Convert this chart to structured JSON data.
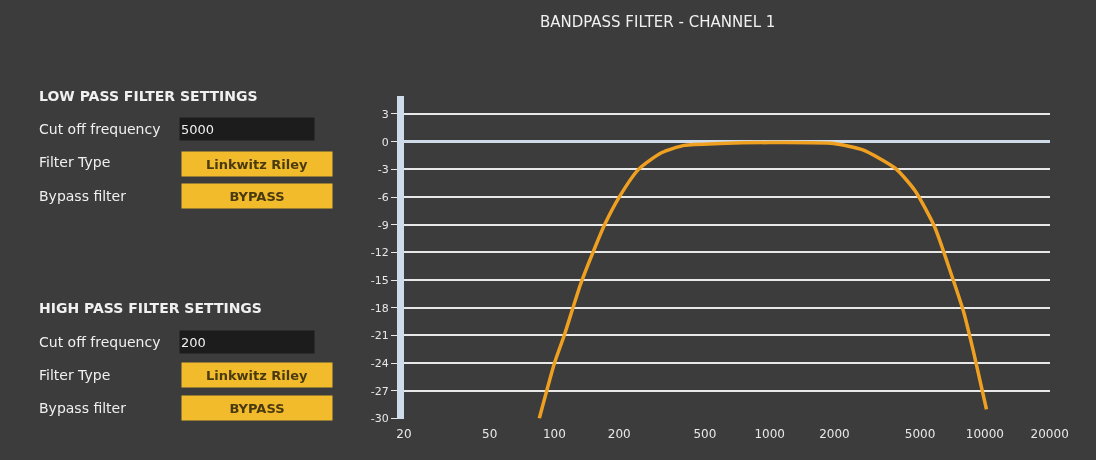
{
  "chart_data": {
    "type": "line",
    "title": "BANDPASS FILTER - CHANNEL 1",
    "x": [
      85,
      100,
      111,
      132,
      151,
      171,
      200,
      246,
      314,
      401,
      588,
      1000,
      1980,
      2710,
      3840,
      4730,
      5830,
      6940,
      7980,
      8860,
      10170
    ],
    "series": [
      {
        "color": "#f0a020",
        "values": [
          -30,
          -24,
          -21,
          -15.5,
          -12,
          -9,
          -6,
          -3,
          -1.2,
          -0.4,
          -0.2,
          -0.1,
          -0.2,
          -0.9,
          -2.9,
          -5.3,
          -9.2,
          -14.2,
          -18.5,
          -22.8,
          -29
        ]
      }
    ],
    "log": "x",
    "xlim": [
      20,
      20000
    ],
    "xticks": [
      20,
      50,
      100,
      200,
      500,
      1000,
      2000,
      5000,
      10000,
      20000
    ],
    "ylim": [
      -30,
      5
    ],
    "yticks": [
      3,
      0,
      -3,
      -6,
      -9,
      -12,
      -15,
      -18,
      -21,
      -24,
      -27,
      -30
    ],
    "grid": "y",
    "marker": "none",
    "line_style": "solid",
    "annotations": [
      "LOW PASS FILTER SETTINGS",
      "Cut off frequency",
      "5000",
      "Filter Type",
      "Linkwitz Riley",
      "Bypass filter",
      "BYPASS",
      "HIGH PASS FILTER SETTINGS",
      "Cut off frequency",
      "200",
      "Filter Type",
      "Linkwitz Riley",
      "Bypass filter",
      "BYPASS"
    ]
  }
}
